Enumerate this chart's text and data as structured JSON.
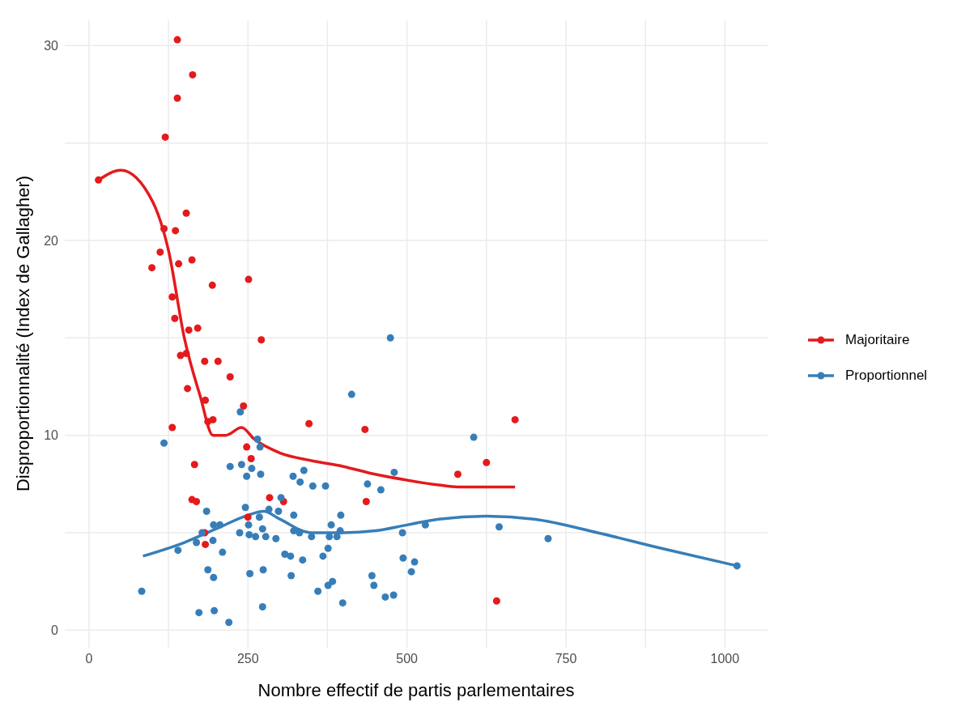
{
  "chart_data": {
    "type": "scatter",
    "xlabel": "Nombre effectif de partis parlementaires",
    "ylabel": "Disproportionnalité (Index de Gallagher)",
    "xlim": [
      -38,
      1067
    ],
    "ylim": [
      -0.9,
      31.3
    ],
    "xticks": [
      0,
      {
        "value": 125,
        "label": null
      },
      250,
      {
        "value": 375,
        "label": null
      },
      500,
      {
        "value": 625,
        "label": null
      },
      750,
      {
        "value": 875,
        "label": null
      },
      1000
    ],
    "yticks": [
      0,
      {
        "value": 5,
        "label": null
      },
      10,
      {
        "value": 15,
        "label": null
      },
      20,
      {
        "value": 25,
        "label": null
      },
      30
    ],
    "grid": true,
    "legend": "right",
    "line_style": "solid",
    "series": [
      {
        "name": "Majoritaire",
        "marker": "circle",
        "color": "#e41a1c",
        "x": [
          15,
          139,
          163,
          139,
          120,
          153,
          118,
          136,
          112,
          99,
          141,
          162,
          194,
          251,
          131,
          135,
          171,
          157,
          153,
          144,
          271,
          155,
          222,
          182,
          203,
          183,
          187,
          195,
          131,
          243,
          166,
          248,
          255,
          162,
          169,
          284,
          306,
          182,
          250,
          183,
          346,
          434,
          436,
          580,
          625,
          641,
          670
        ],
        "values": [
          23.1,
          30.3,
          28.5,
          27.3,
          25.3,
          21.4,
          20.6,
          20.5,
          19.4,
          18.6,
          18.8,
          19.0,
          17.7,
          18.0,
          17.1,
          16.0,
          15.5,
          15.4,
          14.2,
          14.1,
          14.9,
          12.4,
          13.0,
          13.8,
          13.8,
          11.8,
          10.7,
          10.8,
          10.4,
          11.5,
          8.5,
          9.4,
          8.8,
          6.7,
          6.6,
          6.8,
          6.6,
          5.0,
          5.8,
          4.4,
          10.6,
          10.3,
          6.6,
          8.0,
          8.6,
          1.5,
          10.8
        ]
      },
      {
        "name": "Proportionnel",
        "marker": "circle",
        "color": "#377eb8",
        "x": [
          238,
          118,
          265,
          269,
          222,
          240,
          256,
          248,
          270,
          321,
          332,
          338,
          302,
          185,
          246,
          283,
          298,
          322,
          196,
          206,
          237,
          251,
          252,
          262,
          273,
          278,
          294,
          268,
          322,
          331,
          178,
          169,
          195,
          140,
          210,
          308,
          317,
          336,
          187,
          196,
          253,
          274,
          318,
          83,
          173,
          197,
          273,
          220,
          474,
          413,
          605,
          352,
          372,
          480,
          438,
          459,
          396,
          381,
          350,
          378,
          390,
          395,
          493,
          529,
          645,
          722,
          376,
          368,
          494,
          512,
          507,
          445,
          448,
          376,
          383,
          360,
          466,
          479,
          399,
          1019
        ],
        "values": [
          11.2,
          9.6,
          9.8,
          9.4,
          8.4,
          8.5,
          8.3,
          7.9,
          8.0,
          7.9,
          7.6,
          8.2,
          6.8,
          6.1,
          6.3,
          6.2,
          6.1,
          5.9,
          5.4,
          5.4,
          5.0,
          5.4,
          4.9,
          4.8,
          5.2,
          4.8,
          4.7,
          5.8,
          5.1,
          5.0,
          5.0,
          4.5,
          4.6,
          4.1,
          4.0,
          3.9,
          3.8,
          3.6,
          3.1,
          2.7,
          2.9,
          3.1,
          2.8,
          2.0,
          0.9,
          1.0,
          1.2,
          0.4,
          15.0,
          12.1,
          9.9,
          7.4,
          7.4,
          8.1,
          7.5,
          7.2,
          5.9,
          5.4,
          4.8,
          4.8,
          4.8,
          5.1,
          5.0,
          5.4,
          5.3,
          4.7,
          4.2,
          3.8,
          3.7,
          3.5,
          3.0,
          2.8,
          2.3,
          2.3,
          2.5,
          2.0,
          1.7,
          1.8,
          1.4,
          3.3
        ]
      },
      {
        "type": "line",
        "marker": "none",
        "color": "#e41a1c",
        "x": [
          15,
          50,
          100,
          125,
          150,
          175,
          195,
          215,
          240,
          260,
          300,
          350,
          400,
          450,
          500,
          550,
          580,
          670
        ],
        "values": [
          23.1,
          23.6,
          22.0,
          19.5,
          15.0,
          12.0,
          10.0,
          10.0,
          10.4,
          9.8,
          9.1,
          8.7,
          8.4,
          8.0,
          7.7,
          7.45,
          7.35,
          7.35
        ]
      },
      {
        "type": "line",
        "marker": "none",
        "color": "#377eb8",
        "x": [
          85,
          150,
          200,
          250,
          275,
          300,
          350,
          400,
          450,
          500,
          550,
          625,
          700,
          800,
          900,
          1019
        ],
        "values": [
          3.8,
          4.5,
          5.2,
          5.9,
          6.1,
          5.7,
          5.0,
          5.0,
          5.1,
          5.4,
          5.7,
          5.85,
          5.7,
          5.0,
          4.2,
          3.3
        ]
      }
    ]
  }
}
